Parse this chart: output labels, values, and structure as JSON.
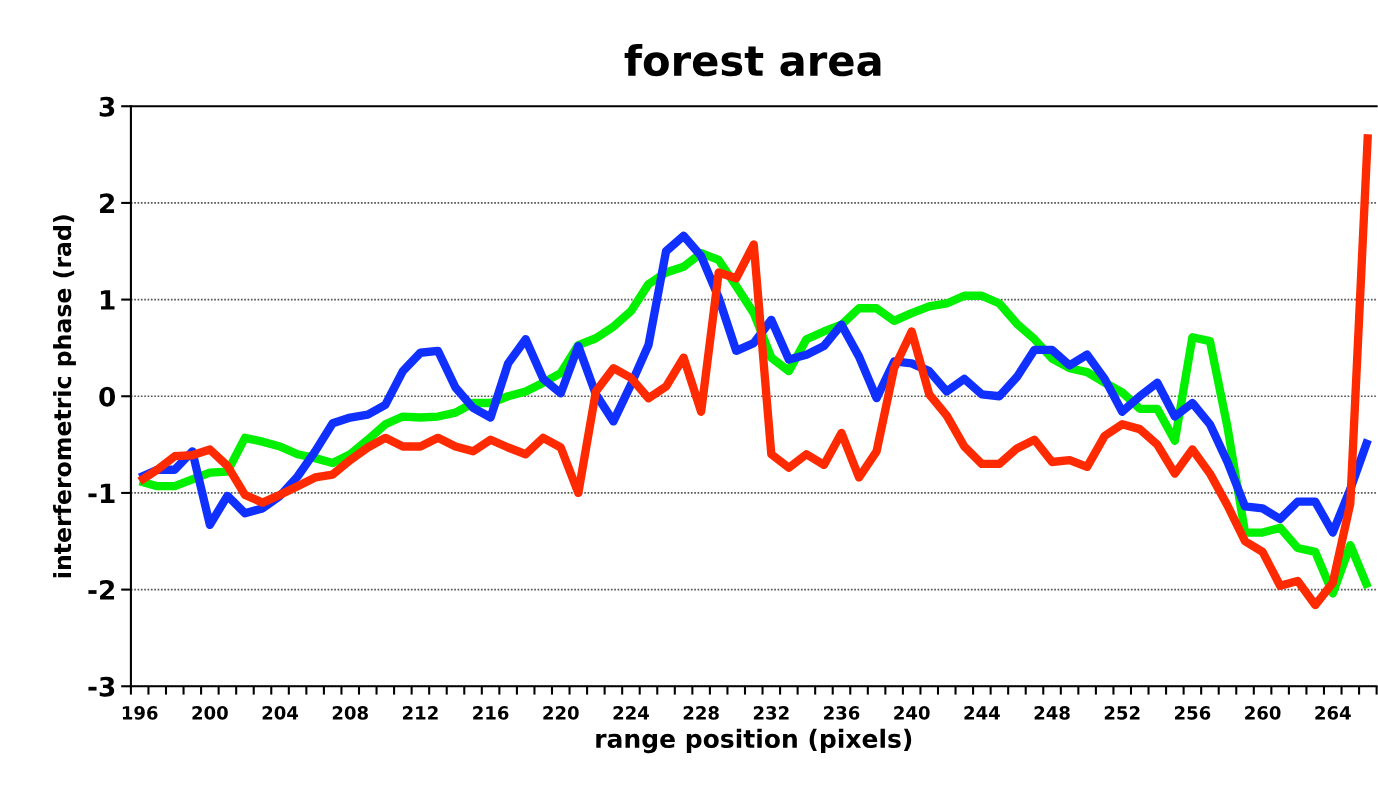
{
  "chart_data": {
    "type": "line",
    "title": "forest area",
    "xlabel": "range position (pixels)",
    "ylabel": "interferometric phase (rad)",
    "categories": [
      "196",
      null,
      null,
      null,
      "200",
      null,
      null,
      null,
      "204",
      null,
      null,
      null,
      "208",
      null,
      null,
      null,
      "212",
      null,
      null,
      null,
      "216",
      null,
      null,
      null,
      "220",
      null,
      null,
      null,
      "224",
      null,
      null,
      null,
      "228",
      null,
      null,
      null,
      "232",
      null,
      null,
      null,
      "236",
      null,
      null,
      null,
      "240",
      null,
      null,
      null,
      "244",
      null,
      null,
      null,
      "248",
      null,
      null,
      null,
      "252",
      null,
      null,
      null,
      "256",
      null,
      null,
      null,
      "260",
      null,
      null,
      null,
      "264",
      null,
      null
    ],
    "series": [
      {
        "color": "#00f000",
        "values": [
          -0.88,
          -0.93,
          -0.93,
          -0.86,
          -0.79,
          -0.78,
          -0.43,
          -0.47,
          -0.52,
          -0.6,
          -0.64,
          -0.69,
          -0.6,
          -0.45,
          -0.29,
          -0.21,
          -0.22,
          -0.21,
          -0.17,
          -0.07,
          -0.07,
          0,
          0.05,
          0.14,
          0.24,
          0.53,
          0.6,
          0.72,
          0.88,
          1.16,
          1.28,
          1.34,
          1.48,
          1.41,
          1.14,
          0.86,
          0.4,
          0.26,
          0.59,
          0.67,
          0.74,
          0.91,
          0.91,
          0.78,
          0.86,
          0.93,
          0.96,
          1.04,
          1.04,
          0.96,
          0.75,
          0.59,
          0.39,
          0.29,
          0.25,
          0.14,
          0.04,
          -0.13,
          -0.13,
          -0.46,
          0.61,
          0.57,
          -0.32,
          -1.41,
          -1.41,
          -1.36,
          -1.57,
          -1.61,
          -2.04,
          -1.54,
          -1.98
        ]
      },
      {
        "color": "#1030ff",
        "values": [
          -0.84,
          -0.76,
          -0.76,
          -0.57,
          -1.33,
          -1.03,
          -1.21,
          -1.16,
          -1.03,
          -0.83,
          -0.57,
          -0.28,
          -0.22,
          -0.19,
          -0.09,
          0.26,
          0.45,
          0.47,
          0.09,
          -0.12,
          -0.22,
          0.34,
          0.59,
          0.18,
          0.03,
          0.52,
          0.02,
          -0.26,
          0.12,
          0.53,
          1.5,
          1.66,
          1.45,
          1.02,
          0.47,
          0.55,
          0.79,
          0.38,
          0.43,
          0.52,
          0.74,
          0.41,
          -0.02,
          0.36,
          0.34,
          0.26,
          0.05,
          0.18,
          0.02,
          0.0,
          0.2,
          0.48,
          0.48,
          0.32,
          0.43,
          0.18,
          -0.16,
          0.0,
          0.14,
          -0.21,
          -0.07,
          -0.29,
          -0.68,
          -1.14,
          -1.16,
          -1.27,
          -1.09,
          -1.09,
          -1.41,
          -0.96,
          -0.45
        ]
      },
      {
        "color": "#ff2a00",
        "values": [
          -0.88,
          -0.76,
          -0.62,
          -0.61,
          -0.55,
          -0.72,
          -1.02,
          -1.1,
          -1.02,
          -0.93,
          -0.84,
          -0.81,
          -0.66,
          -0.53,
          -0.43,
          -0.52,
          -0.52,
          -0.43,
          -0.52,
          -0.57,
          -0.45,
          -0.53,
          -0.6,
          -0.43,
          -0.53,
          -1.0,
          0.05,
          0.29,
          0.19,
          -0.02,
          0.1,
          0.4,
          -0.16,
          1.28,
          1.22,
          1.57,
          -0.6,
          -0.74,
          -0.6,
          -0.71,
          -0.38,
          -0.84,
          -0.57,
          0.29,
          0.67,
          0.02,
          -0.2,
          -0.52,
          -0.7,
          -0.7,
          -0.54,
          -0.45,
          -0.68,
          -0.66,
          -0.73,
          -0.41,
          -0.29,
          -0.34,
          -0.5,
          -0.8,
          -0.55,
          -0.8,
          -1.13,
          -1.5,
          -1.61,
          -1.96,
          -1.91,
          -2.16,
          -1.93,
          -1.11,
          2.71
        ]
      }
    ],
    "ylim": [
      -3,
      3
    ],
    "yticks": [
      -3,
      -2,
      -1,
      0,
      1,
      2,
      3
    ],
    "grid": "y",
    "marker": "none",
    "line_style": "solid"
  }
}
